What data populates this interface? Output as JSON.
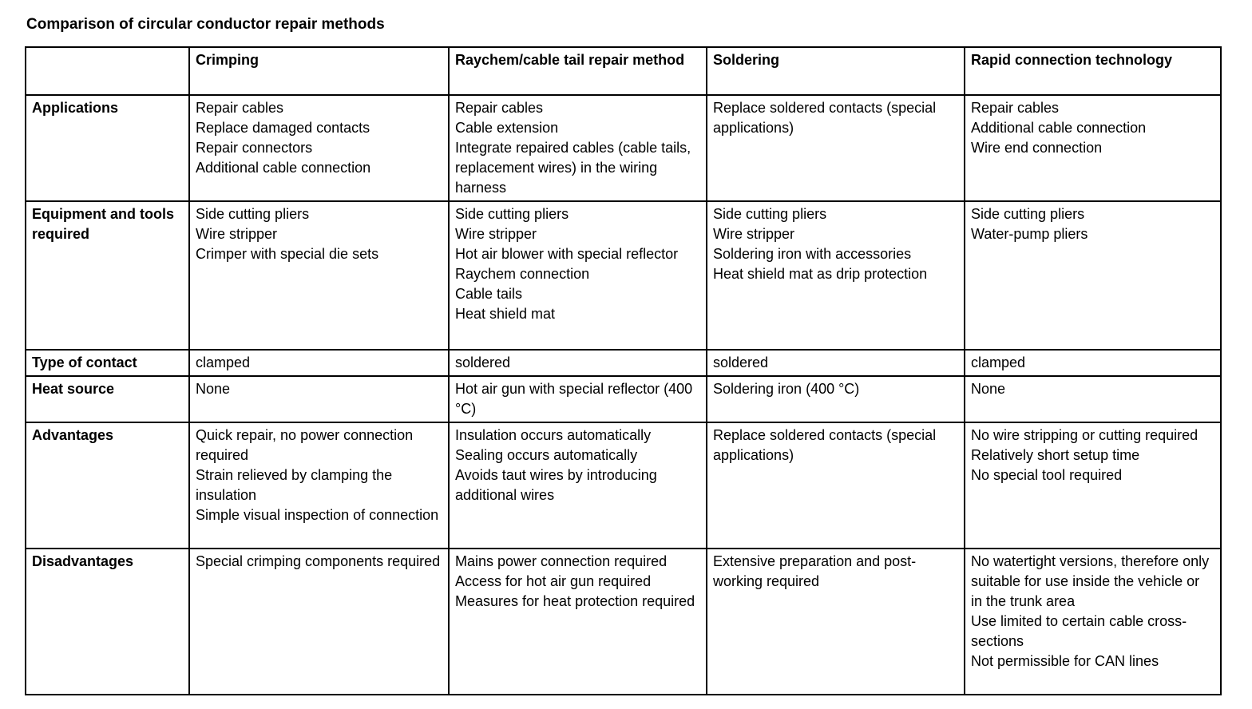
{
  "page_title": "Comparison of circular conductor repair methods",
  "colors": {
    "text": "#000000",
    "border": "#000000",
    "background": "#ffffff"
  },
  "table": {
    "column_headers": [
      "",
      "Crimping",
      "Raychem/cable tail repair method",
      "Soldering",
      "Rapid connection technology"
    ],
    "rows": [
      {
        "label": "Applications",
        "cells": [
          [
            "Repair cables",
            "Replace damaged contacts",
            "Repair connectors",
            "Additional cable connection"
          ],
          [
            "Repair cables",
            "Cable extension",
            "Integrate repaired cables (cable tails, replacement wires) in the wiring harness"
          ],
          [
            "Replace soldered contacts (special applications)"
          ],
          [
            "Repair cables",
            "Additional cable connection",
            "Wire end connection"
          ]
        ]
      },
      {
        "label": "Equipment and tools required",
        "cells": [
          [
            "Side cutting pliers",
            "Wire stripper",
            "Crimper with special die sets"
          ],
          [
            "Side cutting pliers",
            "Wire stripper",
            "Hot air blower with special reflector",
            "Raychem connection",
            "Cable tails",
            "Heat shield mat"
          ],
          [
            "Side cutting pliers",
            "Wire stripper",
            "Soldering iron with accessories",
            "Heat shield mat as drip protection"
          ],
          [
            "Side cutting pliers",
            "Water-pump pliers"
          ]
        ]
      },
      {
        "label": "Type of contact",
        "cells": [
          [
            "clamped"
          ],
          [
            "soldered"
          ],
          [
            "soldered"
          ],
          [
            "clamped"
          ]
        ]
      },
      {
        "label": "Heat source",
        "cells": [
          [
            "None"
          ],
          [
            "Hot air gun with special reflector (400 °C)"
          ],
          [
            "Soldering iron (400 °C)"
          ],
          [
            "None"
          ]
        ]
      },
      {
        "label": "Advantages",
        "cells": [
          [
            "Quick repair, no power connection required",
            "Strain relieved by clamping the insulation",
            "Simple visual inspection of connection"
          ],
          [
            "Insulation occurs automatically",
            "Sealing occurs automatically",
            "Avoids taut wires by introducing additional wires"
          ],
          [
            "Replace soldered contacts (special applications)"
          ],
          [
            "No wire stripping or cutting required",
            "Relatively short setup time",
            "No special tool required"
          ]
        ]
      },
      {
        "label": "Disadvantages",
        "cells": [
          [
            "Special crimping components required"
          ],
          [
            "Mains power connection required",
            "Access for hot air gun required",
            "Measures for heat protection required"
          ],
          [
            "Extensive preparation and post-working required"
          ],
          [
            "No watertight versions, therefore only suitable for use inside the vehicle or in the trunk area",
            "Use limited to certain cable cross-sections",
            "Not permissible for CAN lines"
          ]
        ]
      }
    ]
  }
}
